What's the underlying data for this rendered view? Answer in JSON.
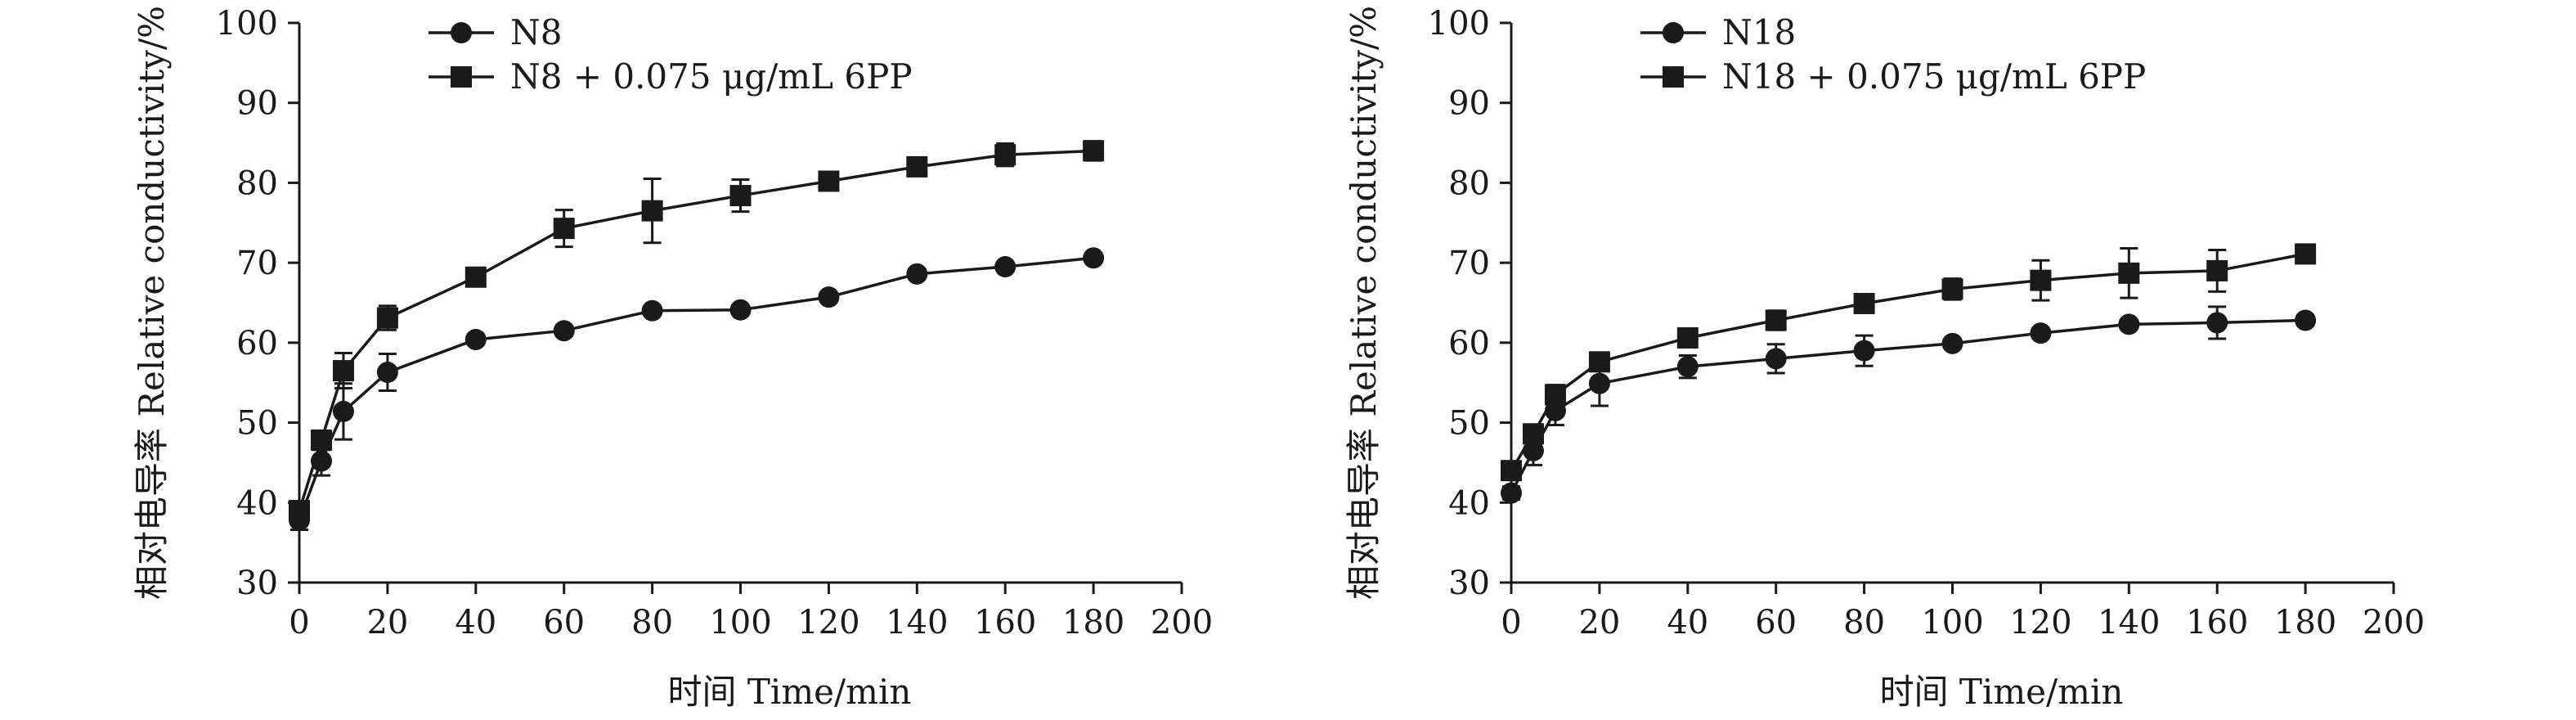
{
  "chart_data": [
    {
      "type": "line",
      "title": "",
      "xlabel": "时间 Time/min",
      "ylabel": "相对电导率 Relative conductivity/%",
      "xlim": [
        0,
        200
      ],
      "ylim": [
        30,
        100
      ],
      "xticks": [
        "0",
        "20",
        "40",
        "60",
        "80",
        "100",
        "120",
        "140",
        "160",
        "180",
        "200"
      ],
      "yticks": [
        "30",
        "40",
        "50",
        "60",
        "70",
        "80",
        "90",
        "100"
      ],
      "grid": false,
      "legend": "top-left",
      "x": [
        0,
        5,
        10,
        20,
        40,
        60,
        80,
        100,
        120,
        140,
        160,
        180
      ],
      "series": [
        {
          "name": "N8",
          "marker": "circle",
          "values": [
            37.8,
            45.2,
            51.4,
            56.3,
            60.4,
            61.5,
            64.0,
            64.1,
            65.7,
            68.6,
            69.5,
            70.6
          ],
          "errors": [
            1.2,
            1.8,
            3.5,
            2.3,
            0.6,
            0.6,
            0.5,
            0.5,
            0.6,
            0.6,
            0.5,
            0.5
          ]
        },
        {
          "name": "N8 + 0.075 μg/mL 6PP",
          "marker": "square",
          "values": [
            39.0,
            47.8,
            56.5,
            63.1,
            68.2,
            74.3,
            76.5,
            78.4,
            80.2,
            82.0,
            83.5,
            84.0
          ],
          "errors": [
            1.0,
            1.2,
            2.2,
            1.5,
            0.6,
            2.3,
            4.0,
            2.0,
            1.0,
            0.8,
            1.4,
            1.2
          ]
        }
      ]
    },
    {
      "type": "line",
      "title": "",
      "xlabel": "时间 Time/min",
      "ylabel": "相对电导率 Relative conductivity/%",
      "xlim": [
        0,
        200
      ],
      "ylim": [
        30,
        100
      ],
      "xticks": [
        "0",
        "20",
        "40",
        "60",
        "80",
        "100",
        "120",
        "140",
        "160",
        "180",
        "200"
      ],
      "yticks": [
        "30",
        "40",
        "50",
        "60",
        "70",
        "80",
        "90",
        "100"
      ],
      "grid": false,
      "legend": "top-left",
      "x": [
        0,
        5,
        10,
        20,
        40,
        60,
        80,
        100,
        120,
        140,
        160,
        180
      ],
      "series": [
        {
          "name": "N18",
          "marker": "circle",
          "values": [
            41.2,
            46.5,
            51.5,
            54.9,
            57.0,
            58.0,
            59.0,
            59.9,
            61.2,
            62.3,
            62.5,
            62.8
          ],
          "errors": [
            0.8,
            1.8,
            1.8,
            2.8,
            1.4,
            1.8,
            1.9,
            0.6,
            0.6,
            0.6,
            2.0,
            0.6
          ]
        },
        {
          "name": "N18 + 0.075 μg/mL 6PP",
          "marker": "square",
          "values": [
            44.0,
            48.6,
            53.5,
            57.6,
            60.6,
            62.8,
            64.9,
            66.7,
            67.8,
            68.7,
            69.0,
            71.1
          ],
          "errors": [
            0.8,
            1.0,
            1.2,
            1.0,
            0.6,
            1.2,
            0.6,
            1.3,
            2.5,
            3.1,
            2.6,
            0.6
          ]
        }
      ]
    }
  ],
  "colors": {
    "ink": "#1a1a1a",
    "background": "#ffffff"
  }
}
